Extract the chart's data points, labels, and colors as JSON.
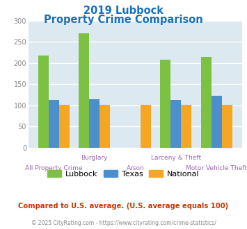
{
  "title_line1": "2019 Lubbock",
  "title_line2": "Property Crime Comparison",
  "title_color": "#1a6fbb",
  "categories": [
    "All Property Crime",
    "Burglary",
    "Arson",
    "Larceny & Theft",
    "Motor Vehicle Theft"
  ],
  "cat_labels_row1": [
    "",
    "Burglary",
    "",
    "Larceny & Theft",
    ""
  ],
  "cat_labels_row2": [
    "All Property Crime",
    "",
    "Arson",
    "",
    "Motor Vehicle Theft"
  ],
  "lubbock_values": [
    218,
    270,
    0,
    207,
    215
  ],
  "texas_values": [
    113,
    115,
    0,
    113,
    122
  ],
  "national_values": [
    101,
    102,
    101,
    102,
    102
  ],
  "lubbock_color": "#7dc142",
  "texas_color": "#4d8fcc",
  "national_color": "#f5a623",
  "ylim": [
    0,
    300
  ],
  "yticks": [
    0,
    50,
    100,
    150,
    200,
    250,
    300
  ],
  "plot_bg_color": "#dde9f0",
  "grid_color": "#c8dce8",
  "legend_labels": [
    "Lubbock",
    "Texas",
    "National"
  ],
  "footnote1": "Compared to U.S. average. (U.S. average equals 100)",
  "footnote2": "© 2025 CityRating.com - https://www.cityrating.com/crime-statistics/",
  "footnote1_color": "#cc3300",
  "footnote2_color": "#888888",
  "label_color": "#9966aa",
  "ytick_color": "#888888"
}
